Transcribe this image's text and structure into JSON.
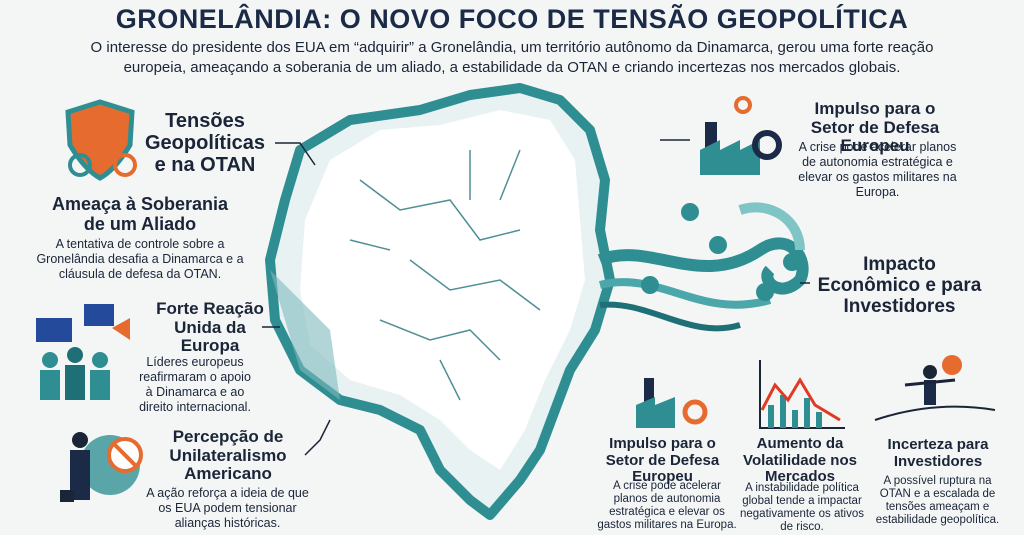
{
  "header": {
    "title": "GRONELÂNDIA: O NOVO FOCO DE TENSÃO GEOPOLÍTICA",
    "subtitle": "O interesse do presidente dos EUA em “adquirir” a Gronelândia, um território autônomo da Dinamarca, gerou uma forte reação europeia, ameaçando a soberania de um aliado, a estabilidade da OTAN e criando incertezas nos mercados globais."
  },
  "left": [
    {
      "heading": "Tensões Geopolíticas e na OTAN"
    },
    {
      "heading": "Ameaça à Soberania de um Aliado",
      "text": "A tentativa de controle sobre a Gronelândia desafia a Dinamarca e a cláusula de defesa da OTAN."
    },
    {
      "heading": "Forte Reação Unida da Europa",
      "text": "Líderes europeus reafirmaram o apoio à Dinamarca e ao direito internacional."
    },
    {
      "heading": "Percepção de Unilateralismo Americano",
      "text": "A ação reforça a ideia de que os EUA podem tensionar alianças históricas."
    }
  ],
  "right": [
    {
      "heading": "Impulso para o Setor de Defesa Europeu",
      "text": "A crise pode acelerar planos de autonomia estratégica e elevar os gastos militares na Europa."
    },
    {
      "heading": "Impacto Econômico e para Investidores"
    }
  ],
  "bottom": [
    {
      "heading": "Impulso para o Setor de Defesa Europeu",
      "text": "A crise pode acelerar planos de autonomia estratégica e elevar os gastos militares na Europa."
    },
    {
      "heading": "Aumento da Volatilidade nos Mercados",
      "text": "A instabilidade política global tende a impactar negativamente os ativos de risco."
    },
    {
      "heading": "Incerteza para Investidores",
      "text": "A possível ruptura na OTAN e a escalada de tensões ameaçam e estabilidade geopolítica."
    }
  ]
}
